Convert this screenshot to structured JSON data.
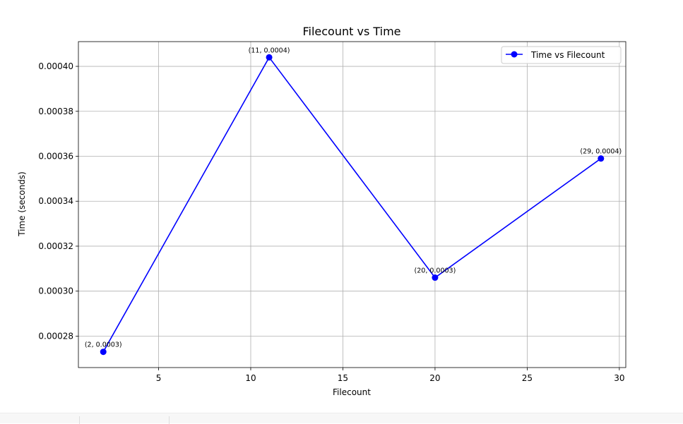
{
  "chart_data": {
    "type": "line",
    "title": "Filecount vs Time",
    "xlabel": "Filecount",
    "ylabel": "Time (seconds)",
    "xlim": [
      0.65,
      30.35
    ],
    "ylim": [
      0.000266,
      0.000411
    ],
    "grid": true,
    "legend_position": "top-right",
    "x_ticks": [
      5,
      10,
      15,
      20,
      25,
      30
    ],
    "x_tick_labels": [
      "5",
      "10",
      "15",
      "20",
      "25",
      "30"
    ],
    "y_ticks": [
      0.00028,
      0.0003,
      0.00032,
      0.00034,
      0.00036,
      0.00038,
      0.0004
    ],
    "y_tick_labels": [
      "0.00028",
      "0.00030",
      "0.00032",
      "0.00034",
      "0.00036",
      "0.00038",
      "0.00040"
    ],
    "series": [
      {
        "name": "Time vs Filecount",
        "color": "#0000ff",
        "marker": "circle",
        "x": [
          2,
          11,
          20,
          29
        ],
        "y": [
          0.000273,
          0.000404,
          0.000306,
          0.000359
        ]
      }
    ],
    "point_labels": [
      "(2, 0.0003)",
      "(11, 0.0004)",
      "(20, 0.0003)",
      "(29, 0.0004)"
    ]
  },
  "colors": {
    "line": "#0000ff",
    "grid": "#b0b0b0",
    "axis": "#000000",
    "strip": "#f7f7f7"
  }
}
